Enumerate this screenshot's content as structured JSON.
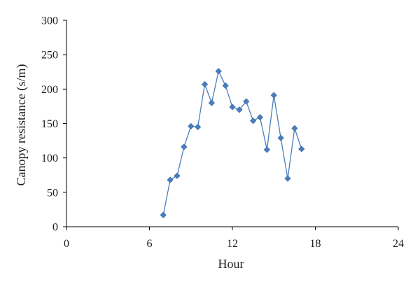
{
  "chart_data": {
    "type": "line",
    "title": "",
    "xlabel": "Hour",
    "ylabel": "Canopy resistance (s/m)",
    "xlim": [
      0,
      24
    ],
    "ylim": [
      0,
      300
    ],
    "xticks": [
      0,
      6,
      12,
      18,
      24
    ],
    "yticks": [
      0,
      50,
      100,
      150,
      200,
      250,
      300
    ],
    "grid": false,
    "legend": "none",
    "series": [
      {
        "color": "#4a7ebb",
        "marker": "diamond",
        "x": [
          7,
          7.5,
          8,
          8.5,
          9,
          9.5,
          10,
          10.5,
          11,
          11.5,
          12,
          12.5,
          13,
          13.5,
          14,
          14.5,
          15,
          15.5,
          16,
          16.5,
          17
        ],
        "y": [
          17,
          68,
          74,
          116,
          146,
          145,
          207,
          180,
          226,
          205,
          174,
          170,
          182,
          154,
          159,
          112,
          191,
          129,
          70,
          143,
          113
        ]
      }
    ]
  }
}
